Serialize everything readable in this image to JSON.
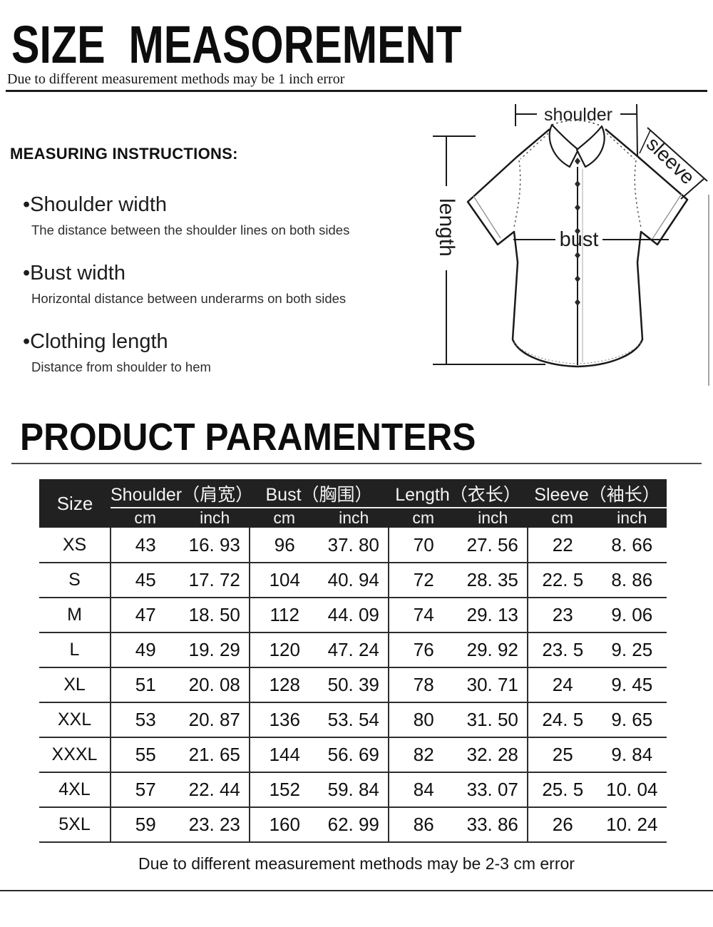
{
  "header": {
    "title": "SIZE  MEASOREMENT",
    "subtitle": "Due to different measurement methods may be 1 inch error"
  },
  "instructions": {
    "heading": "MEASURING INSTRUCTIONS:",
    "bullet": "•",
    "items": [
      {
        "term": "Shoulder width",
        "desc": "The distance between the shoulder lines on both sides"
      },
      {
        "term": "Bust width",
        "desc": "Horizontal distance between underarms on both sides"
      },
      {
        "term": "Clothing length",
        "desc": "Distance from shoulder to hem"
      }
    ]
  },
  "diagram": {
    "labels": {
      "shoulder": "shoulder",
      "sleeve": "sleeve",
      "length": "length",
      "bust": "bust"
    }
  },
  "parameters": {
    "title": "PRODUCT PARAMENTERS",
    "note": "Due to different measurement methods may be 2-3 cm error"
  },
  "size_table": {
    "corner": "Size",
    "groups": [
      "Shoulder（肩宽）",
      "Bust（胸围）",
      "Length（衣长）",
      "Sleeve（袖长）"
    ],
    "units": [
      "cm",
      "inch"
    ],
    "rows": [
      {
        "size": "XS",
        "values": [
          "43",
          "16. 93",
          "96",
          "37. 80",
          "70",
          "27. 56",
          "22",
          "8. 66"
        ]
      },
      {
        "size": "S",
        "values": [
          "45",
          "17. 72",
          "104",
          "40. 94",
          "72",
          "28. 35",
          "22. 5",
          "8. 86"
        ]
      },
      {
        "size": "M",
        "values": [
          "47",
          "18. 50",
          "112",
          "44. 09",
          "74",
          "29. 13",
          "23",
          "9. 06"
        ]
      },
      {
        "size": "L",
        "values": [
          "49",
          "19. 29",
          "120",
          "47. 24",
          "76",
          "29. 92",
          "23. 5",
          "9. 25"
        ]
      },
      {
        "size": "XL",
        "values": [
          "51",
          "20. 08",
          "128",
          "50. 39",
          "78",
          "30. 71",
          "24",
          "9. 45"
        ]
      },
      {
        "size": "XXL",
        "values": [
          "53",
          "20. 87",
          "136",
          "53. 54",
          "80",
          "31. 50",
          "24. 5",
          "9. 65"
        ]
      },
      {
        "size": "XXXL",
        "values": [
          "55",
          "21. 65",
          "144",
          "56. 69",
          "82",
          "32. 28",
          "25",
          "9. 84"
        ]
      },
      {
        "size": "4XL",
        "values": [
          "57",
          "22. 44",
          "152",
          "59. 84",
          "84",
          "33. 07",
          "25. 5",
          "10. 04"
        ]
      },
      {
        "size": "5XL",
        "values": [
          "59",
          "23. 23",
          "160",
          "62. 99",
          "86",
          "33. 86",
          "26",
          "10. 24"
        ]
      }
    ]
  },
  "colors": {
    "header_bg": "#212121",
    "header_text": "#f3f3f3",
    "line": "#2d2d2d",
    "ink": "#1a1a1a"
  }
}
